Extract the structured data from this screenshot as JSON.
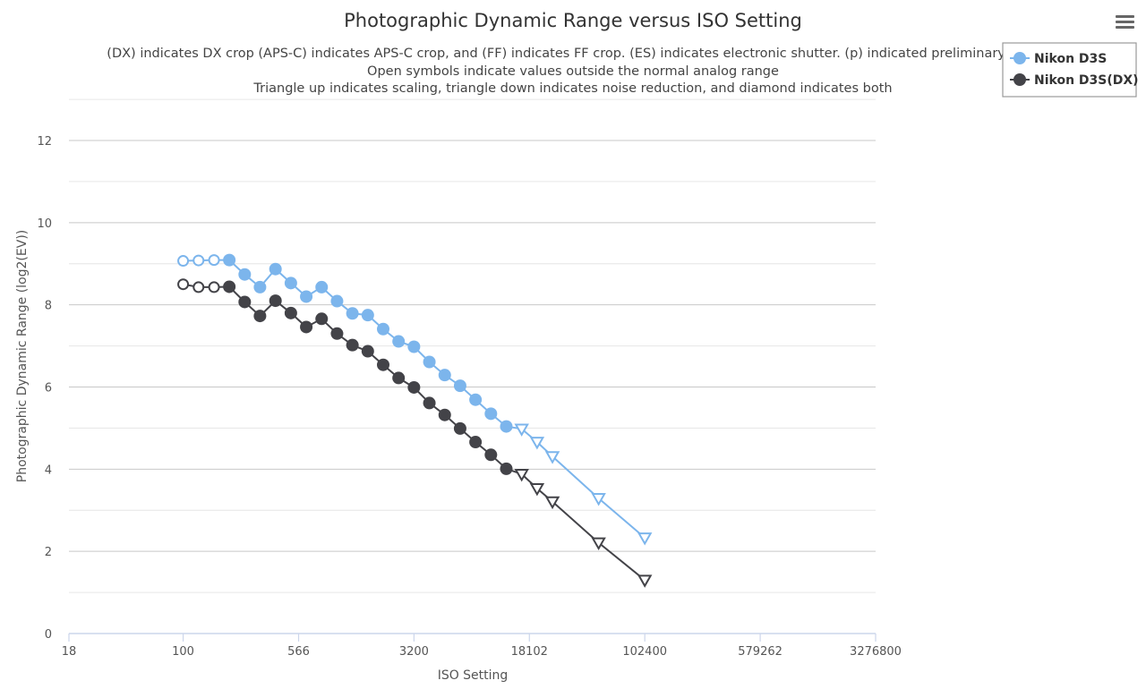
{
  "chart_data": {
    "type": "line",
    "title": "Photographic Dynamic Range versus ISO Setting",
    "subtitle_lines": [
      "(DX) indicates DX crop (APS-C) indicates APS-C crop, and (FF) indicates FF crop. (ES) indicates electronic shutter. (p) indicated preliminary d",
      "Open symbols indicate values outside the normal analog range",
      "Triangle up indicates scaling, triangle down indicates noise reduction, and diamond indicates both"
    ],
    "xlabel": "ISO Setting",
    "ylabel": "Photographic Dynamic Range (log2(EV))",
    "x_scale": "log2",
    "xlim": [
      18,
      3276800
    ],
    "x_ticks": [
      18,
      100,
      566,
      3200,
      18102,
      102400,
      579262,
      3276800
    ],
    "x_tick_labels": [
      "18",
      "100",
      "566",
      "3200",
      "18102",
      "102400",
      "579262",
      "3276800"
    ],
    "ylim": [
      0,
      12
    ],
    "y_ticks": [
      0,
      2,
      4,
      6,
      8,
      10,
      12
    ],
    "y_tick_labels": [
      "0",
      "2",
      "4",
      "6",
      "8",
      "10",
      "12"
    ],
    "legend_position": "top-right",
    "series": [
      {
        "name": "Nikon D3S",
        "color": "#7cb5ec",
        "points": [
          {
            "x": 100,
            "y": 9.07,
            "marker": "circle-open"
          },
          {
            "x": 126,
            "y": 9.08,
            "marker": "circle-open"
          },
          {
            "x": 159,
            "y": 9.09,
            "marker": "circle-open"
          },
          {
            "x": 200,
            "y": 9.09,
            "marker": "circle"
          },
          {
            "x": 252,
            "y": 8.74,
            "marker": "circle"
          },
          {
            "x": 317,
            "y": 8.43,
            "marker": "circle"
          },
          {
            "x": 400,
            "y": 8.87,
            "marker": "circle"
          },
          {
            "x": 504,
            "y": 8.53,
            "marker": "circle"
          },
          {
            "x": 635,
            "y": 8.2,
            "marker": "circle"
          },
          {
            "x": 800,
            "y": 8.43,
            "marker": "circle"
          },
          {
            "x": 1008,
            "y": 8.09,
            "marker": "circle"
          },
          {
            "x": 1270,
            "y": 7.79,
            "marker": "circle"
          },
          {
            "x": 1600,
            "y": 7.75,
            "marker": "circle"
          },
          {
            "x": 2016,
            "y": 7.41,
            "marker": "circle"
          },
          {
            "x": 2540,
            "y": 7.11,
            "marker": "circle"
          },
          {
            "x": 3200,
            "y": 6.98,
            "marker": "circle"
          },
          {
            "x": 4032,
            "y": 6.61,
            "marker": "circle"
          },
          {
            "x": 5080,
            "y": 6.29,
            "marker": "circle"
          },
          {
            "x": 6400,
            "y": 6.03,
            "marker": "circle"
          },
          {
            "x": 8063,
            "y": 5.69,
            "marker": "circle"
          },
          {
            "x": 10159,
            "y": 5.35,
            "marker": "circle"
          },
          {
            "x": 12800,
            "y": 5.04,
            "marker": "circle"
          },
          {
            "x": 16127,
            "y": 4.98,
            "marker": "triangle-down-open"
          },
          {
            "x": 20319,
            "y": 4.66,
            "marker": "triangle-down-open"
          },
          {
            "x": 25600,
            "y": 4.31,
            "marker": "triangle-down-open"
          },
          {
            "x": 51200,
            "y": 3.29,
            "marker": "triangle-down-open"
          },
          {
            "x": 102400,
            "y": 2.33,
            "marker": "triangle-down-open"
          }
        ]
      },
      {
        "name": "Nikon D3S(DX)",
        "color": "#434348",
        "points": [
          {
            "x": 100,
            "y": 8.5,
            "marker": "circle-open"
          },
          {
            "x": 126,
            "y": 8.43,
            "marker": "circle-open"
          },
          {
            "x": 159,
            "y": 8.43,
            "marker": "circle-open"
          },
          {
            "x": 200,
            "y": 8.44,
            "marker": "circle"
          },
          {
            "x": 252,
            "y": 8.07,
            "marker": "circle"
          },
          {
            "x": 317,
            "y": 7.73,
            "marker": "circle"
          },
          {
            "x": 400,
            "y": 8.1,
            "marker": "circle"
          },
          {
            "x": 504,
            "y": 7.8,
            "marker": "circle"
          },
          {
            "x": 635,
            "y": 7.46,
            "marker": "circle"
          },
          {
            "x": 800,
            "y": 7.66,
            "marker": "circle"
          },
          {
            "x": 1008,
            "y": 7.3,
            "marker": "circle"
          },
          {
            "x": 1270,
            "y": 7.02,
            "marker": "circle"
          },
          {
            "x": 1600,
            "y": 6.87,
            "marker": "circle"
          },
          {
            "x": 2016,
            "y": 6.54,
            "marker": "circle"
          },
          {
            "x": 2540,
            "y": 6.22,
            "marker": "circle"
          },
          {
            "x": 3200,
            "y": 5.99,
            "marker": "circle"
          },
          {
            "x": 4032,
            "y": 5.61,
            "marker": "circle"
          },
          {
            "x": 5080,
            "y": 5.32,
            "marker": "circle"
          },
          {
            "x": 6400,
            "y": 4.99,
            "marker": "circle"
          },
          {
            "x": 8063,
            "y": 4.66,
            "marker": "circle"
          },
          {
            "x": 10159,
            "y": 4.35,
            "marker": "circle"
          },
          {
            "x": 12800,
            "y": 4.01,
            "marker": "circle"
          },
          {
            "x": 16127,
            "y": 3.88,
            "marker": "triangle-down-open"
          },
          {
            "x": 20319,
            "y": 3.53,
            "marker": "triangle-down-open"
          },
          {
            "x": 25600,
            "y": 3.21,
            "marker": "triangle-down-open"
          },
          {
            "x": 51200,
            "y": 2.21,
            "marker": "triangle-down-open"
          },
          {
            "x": 102400,
            "y": 1.3,
            "marker": "triangle-down-open"
          }
        ]
      }
    ]
  },
  "menu": {
    "icon": "hamburger-menu-icon"
  }
}
